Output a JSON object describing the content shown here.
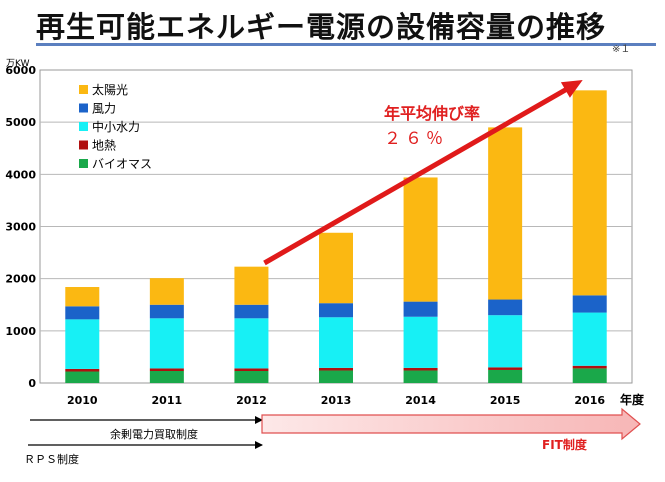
{
  "title": "再生可能エネルギー電源の設備容量の推移",
  "note": "※１",
  "chart_data": {
    "type": "bar",
    "stacked": true,
    "categories": [
      "2010",
      "2011",
      "2012",
      "2013",
      "2014",
      "2015",
      "2016"
    ],
    "series": [
      {
        "name": "バイオマス",
        "color": "#1aa84a",
        "values": [
          220,
          230,
          230,
          240,
          240,
          250,
          280
        ]
      },
      {
        "name": "地熱",
        "color": "#b01010",
        "values": [
          50,
          50,
          50,
          50,
          50,
          50,
          50
        ]
      },
      {
        "name": "中小水力",
        "color": "#17f0f5",
        "values": [
          950,
          960,
          960,
          970,
          980,
          1000,
          1020
        ]
      },
      {
        "name": "風力",
        "color": "#1b63c9",
        "values": [
          250,
          260,
          260,
          270,
          290,
          300,
          330
        ]
      },
      {
        "name": "太陽光",
        "color": "#fbb812",
        "values": [
          370,
          510,
          730,
          1350,
          2380,
          3300,
          3930
        ]
      }
    ],
    "legend_order": [
      "太陽光",
      "風力",
      "中小水力",
      "地熱",
      "バイオマス"
    ],
    "ylim": [
      0,
      6000
    ],
    "yticks": [
      0,
      1000,
      2000,
      3000,
      4000,
      5000,
      6000
    ],
    "ylabel": "万KW",
    "xlabel": "年度",
    "grid": true,
    "legend_position": "top-left",
    "annotation": {
      "line1": "年平均伸び率",
      "line2": "２６％",
      "color": "#e02020"
    },
    "trend_arrow": {
      "from": "2012",
      "to": "2016",
      "color": "#e01a1a"
    }
  },
  "policies": {
    "surplus": "余剰電力買取制度",
    "rps": "ＲＰＳ制度",
    "fit": "FIT制度"
  }
}
